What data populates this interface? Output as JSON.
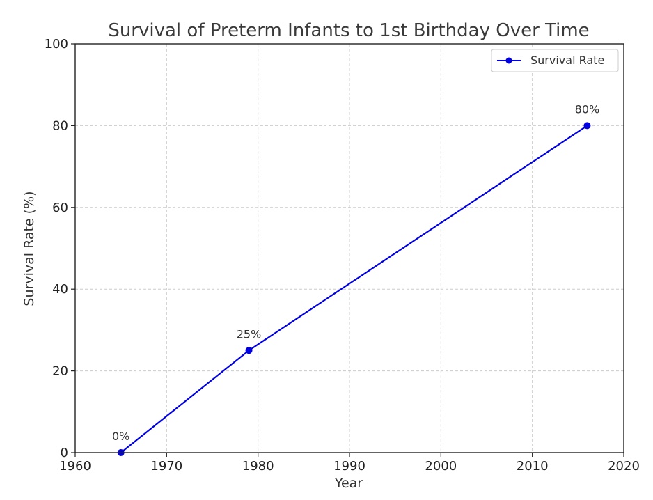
{
  "chart_data": {
    "type": "line",
    "title": "Survival of Preterm Infants to 1st Birthday Over Time",
    "xlabel": "Year",
    "ylabel": "Survival Rate (%)",
    "xlim": [
      1960,
      2020
    ],
    "ylim": [
      0,
      100
    ],
    "x_ticks": [
      "1960",
      "1970",
      "1980",
      "1990",
      "2000",
      "2010",
      "2020"
    ],
    "y_ticks": [
      "0",
      "20",
      "40",
      "60",
      "80",
      "100"
    ],
    "grid": true,
    "legend_position": "top-right",
    "series": [
      {
        "name": "Survival Rate",
        "color": "#0000e0",
        "marker": "circle",
        "x": [
          1965,
          1979,
          2016
        ],
        "y": [
          0,
          25,
          80
        ],
        "labels": [
          "0%",
          "25%",
          "80%"
        ]
      }
    ]
  }
}
